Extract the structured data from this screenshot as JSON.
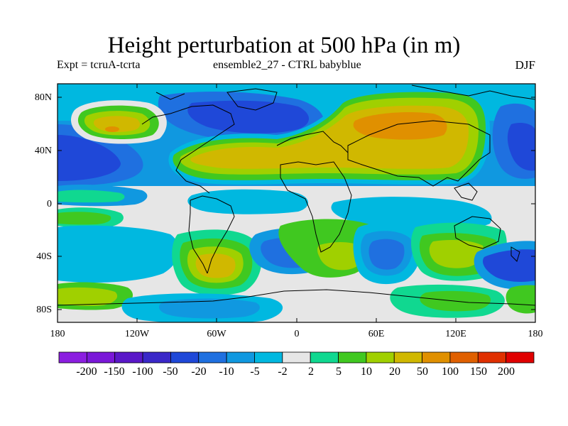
{
  "title": "Height perturbation at 500 hPa (in m)",
  "subtitle_left": "Expt = tcruA-tcrta",
  "subtitle_center": "ensemble2_27 - CTRL babyblue",
  "subtitle_right": "DJF",
  "lat_ticks": [
    "80N",
    "40N",
    "0",
    "40S",
    "80S"
  ],
  "lon_ticks": [
    "180",
    "120W",
    "60W",
    "0",
    "60E",
    "120E",
    "180"
  ],
  "colorbar": {
    "labels": [
      "-200",
      "-150",
      "-100",
      "-50",
      "-20",
      "-10",
      "-5",
      "-2",
      "2",
      "5",
      "10",
      "20",
      "50",
      "100",
      "150",
      "200"
    ],
    "colors": [
      "#8b1ee0",
      "#7a18d8",
      "#5a18c8",
      "#3a28c8",
      "#1f48d8",
      "#1f70e0",
      "#1098e0",
      "#00b8e0",
      "#e6e6e6",
      "#10d890",
      "#40c820",
      "#a0d000",
      "#d0b800",
      "#e09000",
      "#e06000",
      "#e03000",
      "#e00000"
    ]
  }
}
